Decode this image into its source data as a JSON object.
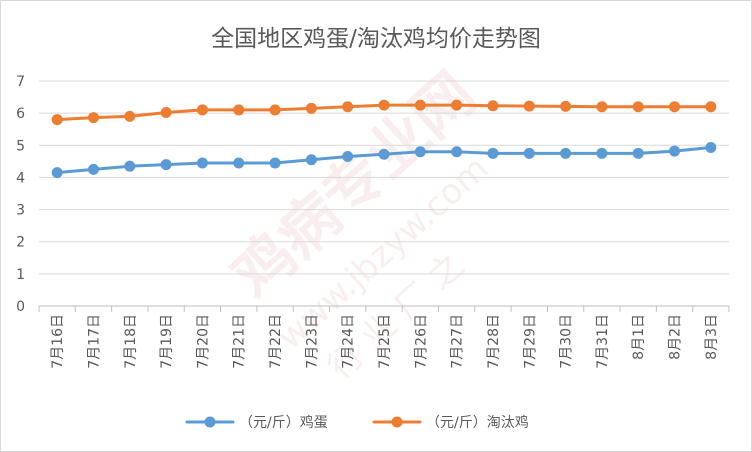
{
  "chart_data": {
    "type": "line",
    "title": "全国地区鸡蛋/淘汰鸡均价走势图",
    "categories": [
      "7月16日",
      "7月17日",
      "7月18日",
      "7月19日",
      "7月20日",
      "7月21日",
      "7月22日",
      "7月23日",
      "7月24日",
      "7月25日",
      "7月26日",
      "7月27日",
      "7月28日",
      "7月29日",
      "7月30日",
      "7月31日",
      "8月1日",
      "8月2日",
      "8月3日"
    ],
    "series": [
      {
        "name": "（元/斤）鸡蛋",
        "color": "#5b9bd5",
        "values": [
          4.15,
          4.25,
          4.35,
          4.4,
          4.45,
          4.45,
          4.45,
          4.55,
          4.65,
          4.72,
          4.8,
          4.8,
          4.75,
          4.75,
          4.75,
          4.75,
          4.75,
          4.82,
          4.93
        ]
      },
      {
        "name": "（元/斤）淘汰鸡",
        "color": "#ed7d31",
        "values": [
          5.8,
          5.86,
          5.9,
          6.02,
          6.1,
          6.1,
          6.1,
          6.15,
          6.2,
          6.25,
          6.25,
          6.25,
          6.23,
          6.22,
          6.21,
          6.2,
          6.2,
          6.2,
          6.2
        ]
      }
    ],
    "ylim": [
      0,
      7
    ],
    "yticks": [
      0,
      1,
      2,
      3,
      4,
      5,
      6,
      7
    ],
    "grid": true,
    "legend": "bottom"
  },
  "watermark": {
    "main": "鸡病专业网",
    "url": "www.jbzyw.com",
    "sub": "行 业 厂 之"
  }
}
